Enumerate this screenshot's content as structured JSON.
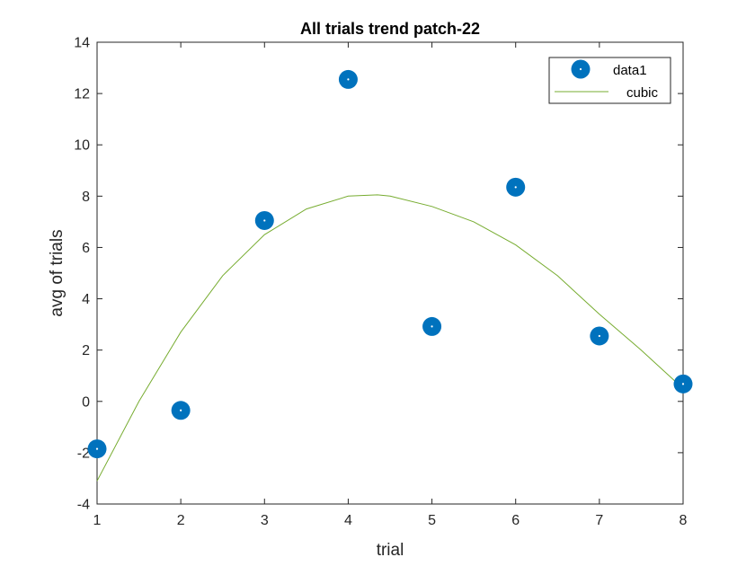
{
  "chart_data": {
    "type": "scatter",
    "title": "All trials trend patch-22",
    "xlabel": "trial",
    "ylabel": "avg of trials",
    "xlim": [
      1,
      8
    ],
    "ylim": [
      -4,
      14
    ],
    "xticks": [
      1,
      2,
      3,
      4,
      5,
      6,
      7,
      8
    ],
    "yticks": [
      -4,
      -2,
      0,
      2,
      4,
      6,
      8,
      10,
      12,
      14
    ],
    "grid": false,
    "legend_position": "top-right",
    "series": [
      {
        "name": "data1",
        "kind": "scatter",
        "color": "#0072BD",
        "x": [
          1,
          2,
          3,
          4,
          5,
          6,
          7,
          8
        ],
        "y": [
          -1.85,
          -0.35,
          7.05,
          12.55,
          2.92,
          8.35,
          2.55,
          0.68
        ]
      },
      {
        "name": "cubic",
        "kind": "line",
        "color": "#77AC30",
        "x": [
          1,
          1.5,
          2,
          2.5,
          3,
          3.5,
          4,
          4.35,
          4.5,
          5,
          5.5,
          6,
          6.5,
          7,
          7.5,
          8
        ],
        "y": [
          -3.1,
          0.0,
          2.7,
          4.9,
          6.5,
          7.5,
          8.0,
          8.05,
          8.0,
          7.6,
          7.0,
          6.1,
          4.9,
          3.4,
          2.0,
          0.5
        ]
      }
    ]
  }
}
